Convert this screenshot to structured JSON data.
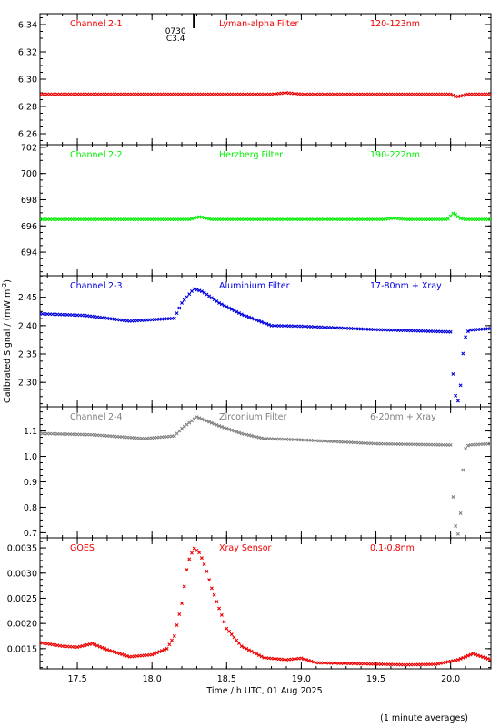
{
  "ylabel": "Calibrated Signal / (mW m",
  "ylabel_sup": "-2",
  "ylabel_end": ")",
  "xlabel": "Time / h UTC, 01 Aug 2025",
  "footnote": "(1 minute averages)",
  "flare_marker": {
    "time": 18.28,
    "label_time": "0730",
    "label_class": "C3.4"
  },
  "x_axis": {
    "range": [
      17.25,
      20.27
    ],
    "ticks": [
      17.5,
      18.0,
      18.5,
      19.0,
      19.5,
      20.0
    ],
    "tick_labels": [
      "17.5",
      "18.0",
      "18.5",
      "19.0",
      "19.5",
      "20.0"
    ]
  },
  "colors": {
    "red": "#ee0000",
    "green": "#00ee00",
    "blue": "#0000dd",
    "gray": "#808080",
    "goes": "#ee0000"
  },
  "chart_data": [
    {
      "type": "scatter",
      "channel": "Channel 2-1",
      "filter": "Lyman-alpha Filter",
      "band": "120-123nm",
      "color_key": "red",
      "ylim": [
        6.252,
        6.348
      ],
      "yticks": [
        6.26,
        6.28,
        6.3,
        6.32,
        6.34
      ],
      "ytick_labels": [
        "6.26",
        "6.28",
        "6.30",
        "6.32",
        "6.34"
      ],
      "x": [
        17.25,
        17.6,
        18.0,
        18.5,
        18.8,
        18.9,
        19.0,
        19.5,
        20.0,
        20.04,
        20.08,
        20.12,
        20.27
      ],
      "y": [
        6.289,
        6.289,
        6.289,
        6.289,
        6.289,
        6.29,
        6.289,
        6.289,
        6.289,
        6.287,
        6.288,
        6.289,
        6.289
      ]
    },
    {
      "type": "scatter",
      "channel": "Channel 2-2",
      "filter": "Herzberg Filter",
      "band": "190-222nm",
      "color_key": "green",
      "ylim": [
        692.2,
        702.2
      ],
      "yticks": [
        694,
        696,
        698,
        700,
        702
      ],
      "ytick_labels": [
        "694",
        "696",
        "698",
        "700",
        "702"
      ],
      "x": [
        17.25,
        17.8,
        18.25,
        18.32,
        18.4,
        19.0,
        19.55,
        19.62,
        19.7,
        19.98,
        20.02,
        20.06,
        20.1,
        20.27
      ],
      "y": [
        696.5,
        696.5,
        696.5,
        696.7,
        696.5,
        696.5,
        696.5,
        696.6,
        696.5,
        696.5,
        697.0,
        696.6,
        696.5,
        696.5
      ]
    },
    {
      "type": "scatter",
      "channel": "Channel 2-3",
      "filter": "Aluminium Filter",
      "band": "17-80nm + Xray",
      "color_key": "blue",
      "ylim": [
        2.257,
        2.488
      ],
      "yticks": [
        2.3,
        2.35,
        2.4,
        2.45
      ],
      "ytick_labels": [
        "2.30",
        "2.35",
        "2.40",
        "2.45"
      ],
      "x": [
        17.25,
        17.55,
        17.85,
        18.15,
        18.2,
        18.28,
        18.34,
        18.45,
        18.6,
        18.8,
        19.0,
        19.5,
        20.0,
        20.02,
        20.04,
        20.06,
        20.08,
        20.1,
        20.12,
        20.27
      ],
      "y": [
        2.421,
        2.418,
        2.408,
        2.413,
        2.44,
        2.465,
        2.46,
        2.44,
        2.42,
        2.4,
        2.399,
        2.393,
        2.389,
        2.3,
        2.265,
        2.27,
        2.345,
        2.38,
        2.392,
        2.395
      ]
    },
    {
      "type": "scatter",
      "channel": "Channel 2-4",
      "filter": "Zirconium Filter",
      "band": "6-20nm + Xray",
      "color_key": "gray",
      "ylim": [
        0.68,
        1.195
      ],
      "yticks": [
        0.7,
        0.8,
        0.9,
        1.0,
        1.1
      ],
      "ytick_labels": [
        "0.7",
        "0.8",
        "0.9",
        "1.0",
        "1.1"
      ],
      "x": [
        17.25,
        17.6,
        17.95,
        18.15,
        18.2,
        18.3,
        18.45,
        18.6,
        18.75,
        19.0,
        19.5,
        20.0,
        20.02,
        20.04,
        20.06,
        20.08,
        20.1,
        20.12,
        20.27
      ],
      "y": [
        1.09,
        1.085,
        1.07,
        1.08,
        1.11,
        1.155,
        1.12,
        1.09,
        1.07,
        1.065,
        1.05,
        1.045,
        0.8,
        0.69,
        0.7,
        0.93,
        1.03,
        1.045,
        1.05
      ]
    },
    {
      "type": "scatter",
      "channel": "GOES",
      "filter": "Xray Sensor",
      "band": "0.1-0.8nm",
      "color_key": "goes",
      "ylim": [
        0.0011,
        0.0037
      ],
      "yticks": [
        0.0015,
        0.002,
        0.0025,
        0.003,
        0.0035
      ],
      "ytick_labels": [
        "0.0015",
        "0.0020",
        "0.0025",
        "0.0030",
        "0.0035"
      ],
      "x": [
        17.25,
        17.4,
        17.5,
        17.6,
        17.7,
        17.85,
        18.0,
        18.1,
        18.15,
        18.2,
        18.24,
        18.28,
        18.32,
        18.36,
        18.4,
        18.45,
        18.5,
        18.6,
        18.75,
        18.9,
        19.0,
        19.1,
        19.4,
        19.7,
        19.9,
        20.05,
        20.15,
        20.27
      ],
      "y": [
        0.00162,
        0.00155,
        0.00153,
        0.0016,
        0.00148,
        0.00134,
        0.00138,
        0.0015,
        0.00175,
        0.0024,
        0.0032,
        0.0035,
        0.0034,
        0.0031,
        0.0027,
        0.0023,
        0.0019,
        0.00155,
        0.00132,
        0.00128,
        0.00131,
        0.00122,
        0.0012,
        0.00118,
        0.00119,
        0.00128,
        0.0014,
        0.00128
      ]
    }
  ]
}
